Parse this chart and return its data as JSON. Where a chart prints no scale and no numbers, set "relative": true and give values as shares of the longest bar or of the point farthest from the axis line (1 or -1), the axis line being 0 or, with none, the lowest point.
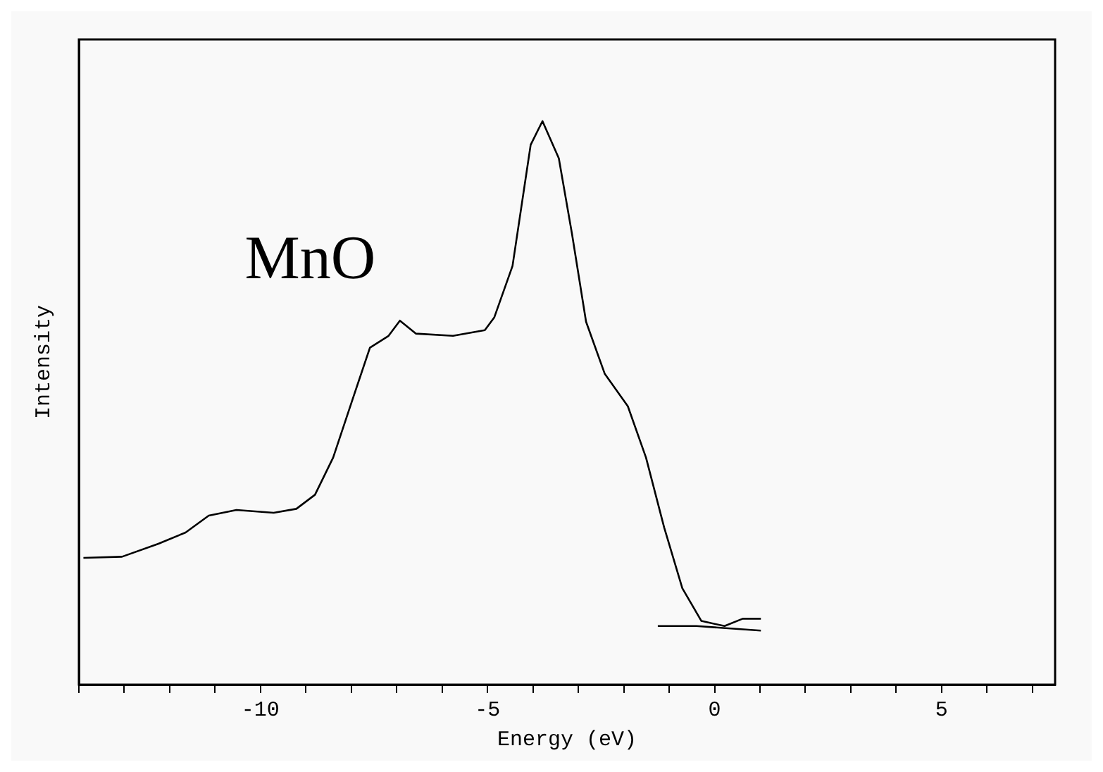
{
  "chart_data": {
    "type": "line",
    "xlabel": "Energy (eV)",
    "ylabel": "Intensity",
    "annotations": [
      "MnO"
    ],
    "relative": true,
    "grid": false,
    "legend": false,
    "marker": "none",
    "line_style": "solid",
    "xlim": [
      -14,
      7.5
    ],
    "xticks": [
      {
        "value": -14,
        "label": null
      },
      {
        "value": -13,
        "label": null
      },
      {
        "value": -12,
        "label": null
      },
      {
        "value": -11,
        "label": null
      },
      -10,
      {
        "value": -9,
        "label": null
      },
      {
        "value": -8,
        "label": null
      },
      {
        "value": -7,
        "label": null
      },
      {
        "value": -6,
        "label": null
      },
      -5,
      {
        "value": -4,
        "label": null
      },
      {
        "value": -3,
        "label": null
      },
      {
        "value": -2,
        "label": null
      },
      {
        "value": -1,
        "label": null
      },
      0,
      {
        "value": 1,
        "label": null
      },
      {
        "value": 2,
        "label": null
      },
      {
        "value": 3,
        "label": null
      },
      {
        "value": 4,
        "label": null
      },
      5,
      {
        "value": 6,
        "label": null
      },
      {
        "value": 7,
        "label": null
      }
    ],
    "series": [
      {
        "color": "#000000",
        "x": [
          -13.9,
          -13.05,
          -12.25,
          -11.65,
          -11.14,
          -10.53,
          -9.71,
          -9.21,
          -8.8,
          -8.4,
          -7.99,
          -7.59,
          -7.18,
          -6.93,
          -6.58,
          -5.76,
          -5.06,
          -4.85,
          -4.45,
          -4.05,
          -3.79,
          -3.43,
          -3.14,
          -2.83,
          -2.42,
          -1.91,
          -1.51,
          -1.11,
          -0.71,
          -0.29,
          0.22,
          0.62,
          1.02
        ],
        "values": [
          0.225,
          0.227,
          0.25,
          0.27,
          0.3,
          0.31,
          0.305,
          0.312,
          0.337,
          0.403,
          0.502,
          0.598,
          0.619,
          0.646,
          0.623,
          0.619,
          0.629,
          0.652,
          0.743,
          0.958,
          1,
          0.934,
          0.8,
          0.644,
          0.552,
          0.494,
          0.403,
          0.279,
          0.171,
          0.113,
          0.104,
          0.117,
          0.117
        ]
      },
      {
        "color": "#000000",
        "x": [
          -1.25,
          -0.4,
          1.02
        ],
        "values": [
          0.104,
          0.104,
          0.096
        ]
      }
    ]
  }
}
